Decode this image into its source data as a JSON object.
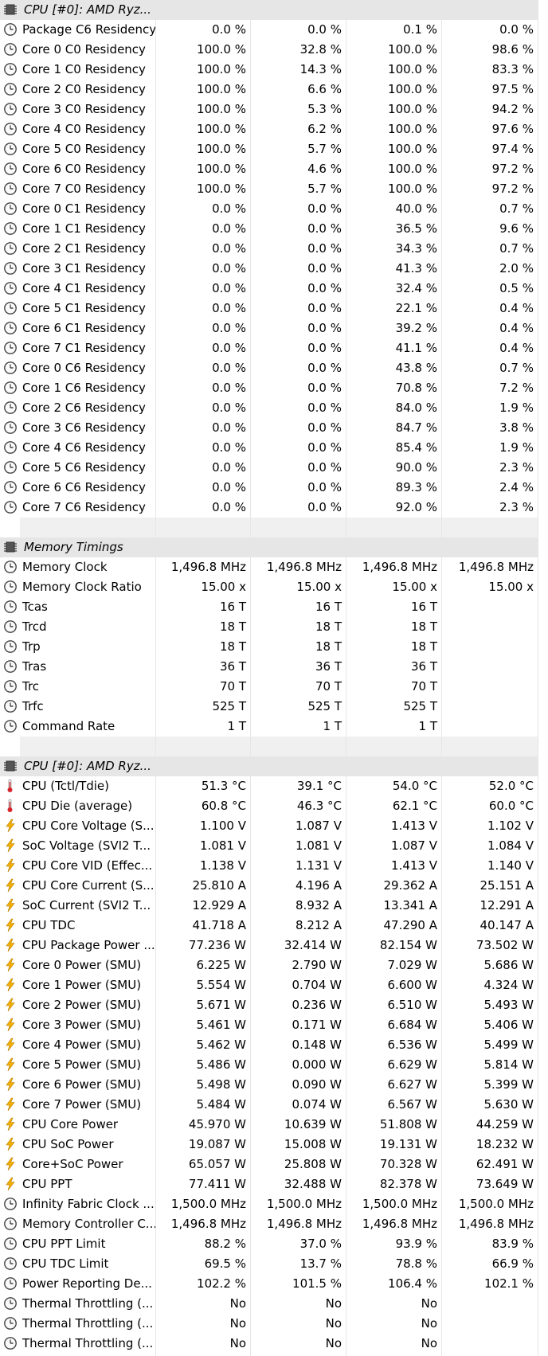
{
  "colors": {
    "group_bg": "#e6e6e6",
    "separator_bg": "#f0f0f0",
    "grid_line": "#e6e6e6"
  },
  "rows": [
    {
      "type": "group",
      "icon": "chip-icon",
      "label": "CPU [#0]: AMD Ryz..."
    },
    {
      "type": "sensor",
      "icon": "clock-icon",
      "label": "Package C6 Residency",
      "v": [
        "0.0 %",
        "0.0 %",
        "0.1 %",
        "0.0 %"
      ]
    },
    {
      "type": "sensor",
      "icon": "clock-icon",
      "label": "Core 0 C0 Residency",
      "v": [
        "100.0 %",
        "32.8 %",
        "100.0 %",
        "98.6 %"
      ]
    },
    {
      "type": "sensor",
      "icon": "clock-icon",
      "label": "Core 1 C0 Residency",
      "v": [
        "100.0 %",
        "14.3 %",
        "100.0 %",
        "83.3 %"
      ]
    },
    {
      "type": "sensor",
      "icon": "clock-icon",
      "label": "Core 2 C0 Residency",
      "v": [
        "100.0 %",
        "6.6 %",
        "100.0 %",
        "97.5 %"
      ]
    },
    {
      "type": "sensor",
      "icon": "clock-icon",
      "label": "Core 3 C0 Residency",
      "v": [
        "100.0 %",
        "5.3 %",
        "100.0 %",
        "94.2 %"
      ]
    },
    {
      "type": "sensor",
      "icon": "clock-icon",
      "label": "Core 4 C0 Residency",
      "v": [
        "100.0 %",
        "6.2 %",
        "100.0 %",
        "97.6 %"
      ]
    },
    {
      "type": "sensor",
      "icon": "clock-icon",
      "label": "Core 5 C0 Residency",
      "v": [
        "100.0 %",
        "5.7 %",
        "100.0 %",
        "97.4 %"
      ]
    },
    {
      "type": "sensor",
      "icon": "clock-icon",
      "label": "Core 6 C0 Residency",
      "v": [
        "100.0 %",
        "4.6 %",
        "100.0 %",
        "97.2 %"
      ]
    },
    {
      "type": "sensor",
      "icon": "clock-icon",
      "label": "Core 7 C0 Residency",
      "v": [
        "100.0 %",
        "5.7 %",
        "100.0 %",
        "97.2 %"
      ]
    },
    {
      "type": "sensor",
      "icon": "clock-icon",
      "label": "Core 0 C1 Residency",
      "v": [
        "0.0 %",
        "0.0 %",
        "40.0 %",
        "0.7 %"
      ]
    },
    {
      "type": "sensor",
      "icon": "clock-icon",
      "label": "Core 1 C1 Residency",
      "v": [
        "0.0 %",
        "0.0 %",
        "36.5 %",
        "9.6 %"
      ]
    },
    {
      "type": "sensor",
      "icon": "clock-icon",
      "label": "Core 2 C1 Residency",
      "v": [
        "0.0 %",
        "0.0 %",
        "34.3 %",
        "0.7 %"
      ]
    },
    {
      "type": "sensor",
      "icon": "clock-icon",
      "label": "Core 3 C1 Residency",
      "v": [
        "0.0 %",
        "0.0 %",
        "41.3 %",
        "2.0 %"
      ]
    },
    {
      "type": "sensor",
      "icon": "clock-icon",
      "label": "Core 4 C1 Residency",
      "v": [
        "0.0 %",
        "0.0 %",
        "32.4 %",
        "0.5 %"
      ]
    },
    {
      "type": "sensor",
      "icon": "clock-icon",
      "label": "Core 5 C1 Residency",
      "v": [
        "0.0 %",
        "0.0 %",
        "22.1 %",
        "0.4 %"
      ]
    },
    {
      "type": "sensor",
      "icon": "clock-icon",
      "label": "Core 6 C1 Residency",
      "v": [
        "0.0 %",
        "0.0 %",
        "39.2 %",
        "0.4 %"
      ]
    },
    {
      "type": "sensor",
      "icon": "clock-icon",
      "label": "Core 7 C1 Residency",
      "v": [
        "0.0 %",
        "0.0 %",
        "41.1 %",
        "0.4 %"
      ]
    },
    {
      "type": "sensor",
      "icon": "clock-icon",
      "label": "Core 0 C6 Residency",
      "v": [
        "0.0 %",
        "0.0 %",
        "43.8 %",
        "0.7 %"
      ]
    },
    {
      "type": "sensor",
      "icon": "clock-icon",
      "label": "Core 1 C6 Residency",
      "v": [
        "0.0 %",
        "0.0 %",
        "70.8 %",
        "7.2 %"
      ]
    },
    {
      "type": "sensor",
      "icon": "clock-icon",
      "label": "Core 2 C6 Residency",
      "v": [
        "0.0 %",
        "0.0 %",
        "84.0 %",
        "1.9 %"
      ]
    },
    {
      "type": "sensor",
      "icon": "clock-icon",
      "label": "Core 3 C6 Residency",
      "v": [
        "0.0 %",
        "0.0 %",
        "84.7 %",
        "3.8 %"
      ]
    },
    {
      "type": "sensor",
      "icon": "clock-icon",
      "label": "Core 4 C6 Residency",
      "v": [
        "0.0 %",
        "0.0 %",
        "85.4 %",
        "1.9 %"
      ]
    },
    {
      "type": "sensor",
      "icon": "clock-icon",
      "label": "Core 5 C6 Residency",
      "v": [
        "0.0 %",
        "0.0 %",
        "90.0 %",
        "2.3 %"
      ]
    },
    {
      "type": "sensor",
      "icon": "clock-icon",
      "label": "Core 6 C6 Residency",
      "v": [
        "0.0 %",
        "0.0 %",
        "89.3 %",
        "2.4 %"
      ]
    },
    {
      "type": "sensor",
      "icon": "clock-icon",
      "label": "Core 7 C6 Residency",
      "v": [
        "0.0 %",
        "0.0 %",
        "92.0 %",
        "2.3 %"
      ]
    },
    {
      "type": "separator"
    },
    {
      "type": "group",
      "icon": "chip-icon",
      "label": "Memory Timings"
    },
    {
      "type": "sensor",
      "icon": "clock-icon",
      "label": "Memory Clock",
      "v": [
        "1,496.8 MHz",
        "1,496.8 MHz",
        "1,496.8 MHz",
        "1,496.8 MHz"
      ]
    },
    {
      "type": "sensor",
      "icon": "clock-icon",
      "label": "Memory Clock Ratio",
      "v": [
        "15.00 x",
        "15.00 x",
        "15.00 x",
        "15.00 x"
      ]
    },
    {
      "type": "sensor",
      "icon": "clock-icon",
      "label": "Tcas",
      "v": [
        "16 T",
        "16 T",
        "16 T",
        ""
      ]
    },
    {
      "type": "sensor",
      "icon": "clock-icon",
      "label": "Trcd",
      "v": [
        "18 T",
        "18 T",
        "18 T",
        ""
      ]
    },
    {
      "type": "sensor",
      "icon": "clock-icon",
      "label": "Trp",
      "v": [
        "18 T",
        "18 T",
        "18 T",
        ""
      ]
    },
    {
      "type": "sensor",
      "icon": "clock-icon",
      "label": "Tras",
      "v": [
        "36 T",
        "36 T",
        "36 T",
        ""
      ]
    },
    {
      "type": "sensor",
      "icon": "clock-icon",
      "label": "Trc",
      "v": [
        "70 T",
        "70 T",
        "70 T",
        ""
      ]
    },
    {
      "type": "sensor",
      "icon": "clock-icon",
      "label": "Trfc",
      "v": [
        "525 T",
        "525 T",
        "525 T",
        ""
      ]
    },
    {
      "type": "sensor",
      "icon": "clock-icon",
      "label": "Command Rate",
      "v": [
        "1 T",
        "1 T",
        "1 T",
        ""
      ]
    },
    {
      "type": "separator"
    },
    {
      "type": "group",
      "icon": "chip-icon",
      "label": "CPU [#0]: AMD Ryz..."
    },
    {
      "type": "sensor",
      "icon": "thermometer-icon",
      "label": "CPU (Tctl/Tdie)",
      "v": [
        "51.3 °C",
        "39.1 °C",
        "54.0 °C",
        "52.0 °C"
      ]
    },
    {
      "type": "sensor",
      "icon": "thermometer-icon",
      "label": "CPU Die (average)",
      "v": [
        "60.8 °C",
        "46.3 °C",
        "62.1 °C",
        "60.0 °C"
      ]
    },
    {
      "type": "sensor",
      "icon": "lightning-icon",
      "label": "CPU Core Voltage (S...",
      "v": [
        "1.100 V",
        "1.087 V",
        "1.413 V",
        "1.102 V"
      ]
    },
    {
      "type": "sensor",
      "icon": "lightning-icon",
      "label": "SoC Voltage (SVI2 T...",
      "v": [
        "1.081 V",
        "1.081 V",
        "1.087 V",
        "1.084 V"
      ]
    },
    {
      "type": "sensor",
      "icon": "lightning-icon",
      "label": "CPU Core VID (Effec...",
      "v": [
        "1.138 V",
        "1.131 V",
        "1.413 V",
        "1.140 V"
      ]
    },
    {
      "type": "sensor",
      "icon": "lightning-icon",
      "label": "CPU Core Current (S...",
      "v": [
        "25.810 A",
        "4.196 A",
        "29.362 A",
        "25.151 A"
      ]
    },
    {
      "type": "sensor",
      "icon": "lightning-icon",
      "label": "SoC Current (SVI2 T...",
      "v": [
        "12.929 A",
        "8.932 A",
        "13.341 A",
        "12.291 A"
      ]
    },
    {
      "type": "sensor",
      "icon": "lightning-icon",
      "label": "CPU TDC",
      "v": [
        "41.718 A",
        "8.212 A",
        "47.290 A",
        "40.147 A"
      ]
    },
    {
      "type": "sensor",
      "icon": "lightning-icon",
      "label": "CPU Package Power ...",
      "v": [
        "77.236 W",
        "32.414 W",
        "82.154 W",
        "73.502 W"
      ]
    },
    {
      "type": "sensor",
      "icon": "lightning-icon",
      "label": "Core 0 Power (SMU)",
      "v": [
        "6.225 W",
        "2.790 W",
        "7.029 W",
        "5.686 W"
      ]
    },
    {
      "type": "sensor",
      "icon": "lightning-icon",
      "label": "Core 1 Power (SMU)",
      "v": [
        "5.554 W",
        "0.704 W",
        "6.600 W",
        "4.324 W"
      ]
    },
    {
      "type": "sensor",
      "icon": "lightning-icon",
      "label": "Core 2 Power (SMU)",
      "v": [
        "5.671 W",
        "0.236 W",
        "6.510 W",
        "5.493 W"
      ]
    },
    {
      "type": "sensor",
      "icon": "lightning-icon",
      "label": "Core 3 Power (SMU)",
      "v": [
        "5.461 W",
        "0.171 W",
        "6.684 W",
        "5.406 W"
      ]
    },
    {
      "type": "sensor",
      "icon": "lightning-icon",
      "label": "Core 4 Power (SMU)",
      "v": [
        "5.462 W",
        "0.148 W",
        "6.536 W",
        "5.499 W"
      ]
    },
    {
      "type": "sensor",
      "icon": "lightning-icon",
      "label": "Core 5 Power (SMU)",
      "v": [
        "5.486 W",
        "0.000 W",
        "6.629 W",
        "5.814 W"
      ]
    },
    {
      "type": "sensor",
      "icon": "lightning-icon",
      "label": "Core 6 Power (SMU)",
      "v": [
        "5.498 W",
        "0.090 W",
        "6.627 W",
        "5.399 W"
      ]
    },
    {
      "type": "sensor",
      "icon": "lightning-icon",
      "label": "Core 7 Power (SMU)",
      "v": [
        "5.484 W",
        "0.074 W",
        "6.567 W",
        "5.630 W"
      ]
    },
    {
      "type": "sensor",
      "icon": "lightning-icon",
      "label": "CPU Core Power",
      "v": [
        "45.970 W",
        "10.639 W",
        "51.808 W",
        "44.259 W"
      ]
    },
    {
      "type": "sensor",
      "icon": "lightning-icon",
      "label": "CPU SoC Power",
      "v": [
        "19.087 W",
        "15.008 W",
        "19.131 W",
        "18.232 W"
      ]
    },
    {
      "type": "sensor",
      "icon": "lightning-icon",
      "label": "Core+SoC Power",
      "v": [
        "65.057 W",
        "25.808 W",
        "70.328 W",
        "62.491 W"
      ]
    },
    {
      "type": "sensor",
      "icon": "lightning-icon",
      "label": "CPU PPT",
      "v": [
        "77.411 W",
        "32.488 W",
        "82.378 W",
        "73.649 W"
      ]
    },
    {
      "type": "sensor",
      "icon": "clock-icon",
      "label": "Infinity Fabric Clock ...",
      "v": [
        "1,500.0 MHz",
        "1,500.0 MHz",
        "1,500.0 MHz",
        "1,500.0 MHz"
      ]
    },
    {
      "type": "sensor",
      "icon": "clock-icon",
      "label": "Memory Controller C...",
      "v": [
        "1,496.8 MHz",
        "1,496.8 MHz",
        "1,496.8 MHz",
        "1,496.8 MHz"
      ]
    },
    {
      "type": "sensor",
      "icon": "clock-icon",
      "label": "CPU PPT Limit",
      "v": [
        "88.2 %",
        "37.0 %",
        "93.9 %",
        "83.9 %"
      ]
    },
    {
      "type": "sensor",
      "icon": "clock-icon",
      "label": "CPU TDC Limit",
      "v": [
        "69.5 %",
        "13.7 %",
        "78.8 %",
        "66.9 %"
      ]
    },
    {
      "type": "sensor",
      "icon": "clock-icon",
      "label": "Power Reporting De...",
      "v": [
        "102.2 %",
        "101.5 %",
        "106.4 %",
        "102.1 %"
      ]
    },
    {
      "type": "sensor",
      "icon": "clock-icon",
      "label": "Thermal Throttling (...",
      "v": [
        "No",
        "No",
        "No",
        ""
      ]
    },
    {
      "type": "sensor",
      "icon": "clock-icon",
      "label": "Thermal Throttling (...",
      "v": [
        "No",
        "No",
        "No",
        ""
      ]
    },
    {
      "type": "sensor",
      "icon": "clock-icon",
      "label": "Thermal Throttling (...",
      "v": [
        "No",
        "No",
        "No",
        ""
      ]
    }
  ]
}
